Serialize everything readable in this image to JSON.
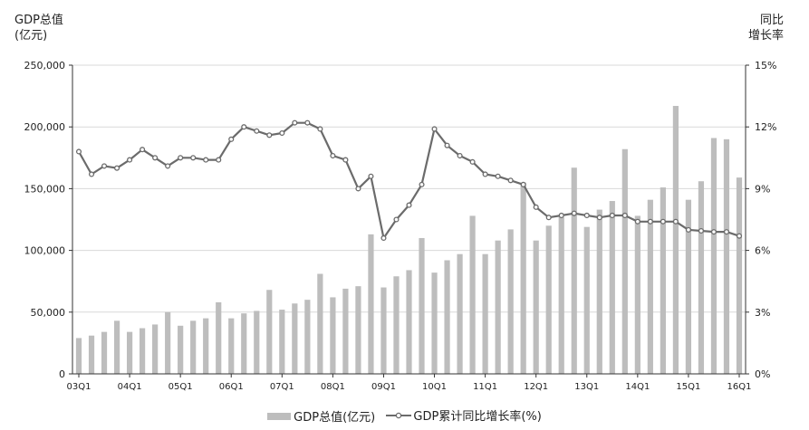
{
  "chart_data": {
    "type": "bar+line",
    "left_axis_title": [
      "GDP总值",
      "(亿元)"
    ],
    "right_axis_title": [
      "同比",
      "增长率"
    ],
    "y_left": {
      "lim": [
        0,
        250000
      ],
      "ticks": [
        "0",
        "50,000",
        "100,000",
        "150,000",
        "200,000",
        "250,000"
      ],
      "tick_values": [
        0,
        50000,
        100000,
        150000,
        200000,
        250000
      ]
    },
    "y_right": {
      "lim": [
        0,
        15
      ],
      "ticks": [
        "0%",
        "3%",
        "6%",
        "9%",
        "12%",
        "15%"
      ],
      "tick_values": [
        0,
        3,
        6,
        9,
        12,
        15
      ]
    },
    "x_tick_labels": [
      "03Q1",
      "04Q1",
      "05Q1",
      "06Q1",
      "07Q1",
      "08Q1",
      "09Q1",
      "10Q1",
      "11Q1",
      "12Q1",
      "13Q1",
      "14Q1",
      "15Q1",
      "16Q1"
    ],
    "categories": [
      "03Q1",
      "03Q2",
      "03Q3",
      "03Q4",
      "04Q1",
      "04Q2",
      "04Q3",
      "04Q4",
      "05Q1",
      "05Q2",
      "05Q3",
      "05Q4",
      "06Q1",
      "06Q2",
      "06Q3",
      "06Q4",
      "07Q1",
      "07Q2",
      "07Q3",
      "07Q4",
      "08Q1",
      "08Q2",
      "08Q3",
      "08Q4",
      "09Q1",
      "09Q2",
      "09Q3",
      "09Q4",
      "10Q1",
      "10Q2",
      "10Q3",
      "10Q4",
      "11Q1",
      "11Q2",
      "11Q3",
      "11Q4",
      "12Q1",
      "12Q2",
      "12Q3",
      "12Q4",
      "13Q1",
      "13Q2",
      "13Q3",
      "13Q4",
      "14Q1",
      "14Q2",
      "14Q3",
      "14Q4",
      "15Q1",
      "15Q2",
      "15Q3",
      "15Q4",
      "16Q1"
    ],
    "series": [
      {
        "name": "GDP总值(亿元)",
        "kind": "bar",
        "axis": "left",
        "color": "#bdbdbd",
        "values": [
          29000,
          31000,
          34000,
          43000,
          34000,
          37000,
          40000,
          50000,
          39000,
          43000,
          45000,
          58000,
          45000,
          49000,
          51000,
          68000,
          52000,
          57000,
          60000,
          81000,
          62000,
          69000,
          71000,
          113000,
          70000,
          79000,
          84000,
          110000,
          82000,
          92000,
          97000,
          128000,
          97000,
          108000,
          117000,
          155000,
          108000,
          120000,
          127000,
          167000,
          119000,
          133000,
          140000,
          182000,
          128000,
          141000,
          151000,
          217000,
          141000,
          156000,
          191000,
          190000,
          159000
        ]
      },
      {
        "name": "GDP累计同比增长率(%)",
        "kind": "line",
        "axis": "right",
        "color": "#6b6b6b",
        "values": [
          10.8,
          9.7,
          10.1,
          10.0,
          10.4,
          10.9,
          10.5,
          10.1,
          10.5,
          10.5,
          10.4,
          10.4,
          11.4,
          12.0,
          11.8,
          11.6,
          11.7,
          12.2,
          12.2,
          11.9,
          10.6,
          10.4,
          9.0,
          9.6,
          6.6,
          7.5,
          8.2,
          9.2,
          11.9,
          11.1,
          10.6,
          10.3,
          9.7,
          9.6,
          9.4,
          9.2,
          8.1,
          7.6,
          7.7,
          7.8,
          7.7,
          7.6,
          7.7,
          7.7,
          7.4,
          7.4,
          7.4,
          7.4,
          7.0,
          6.95,
          6.9,
          6.9,
          6.7
        ]
      }
    ]
  }
}
